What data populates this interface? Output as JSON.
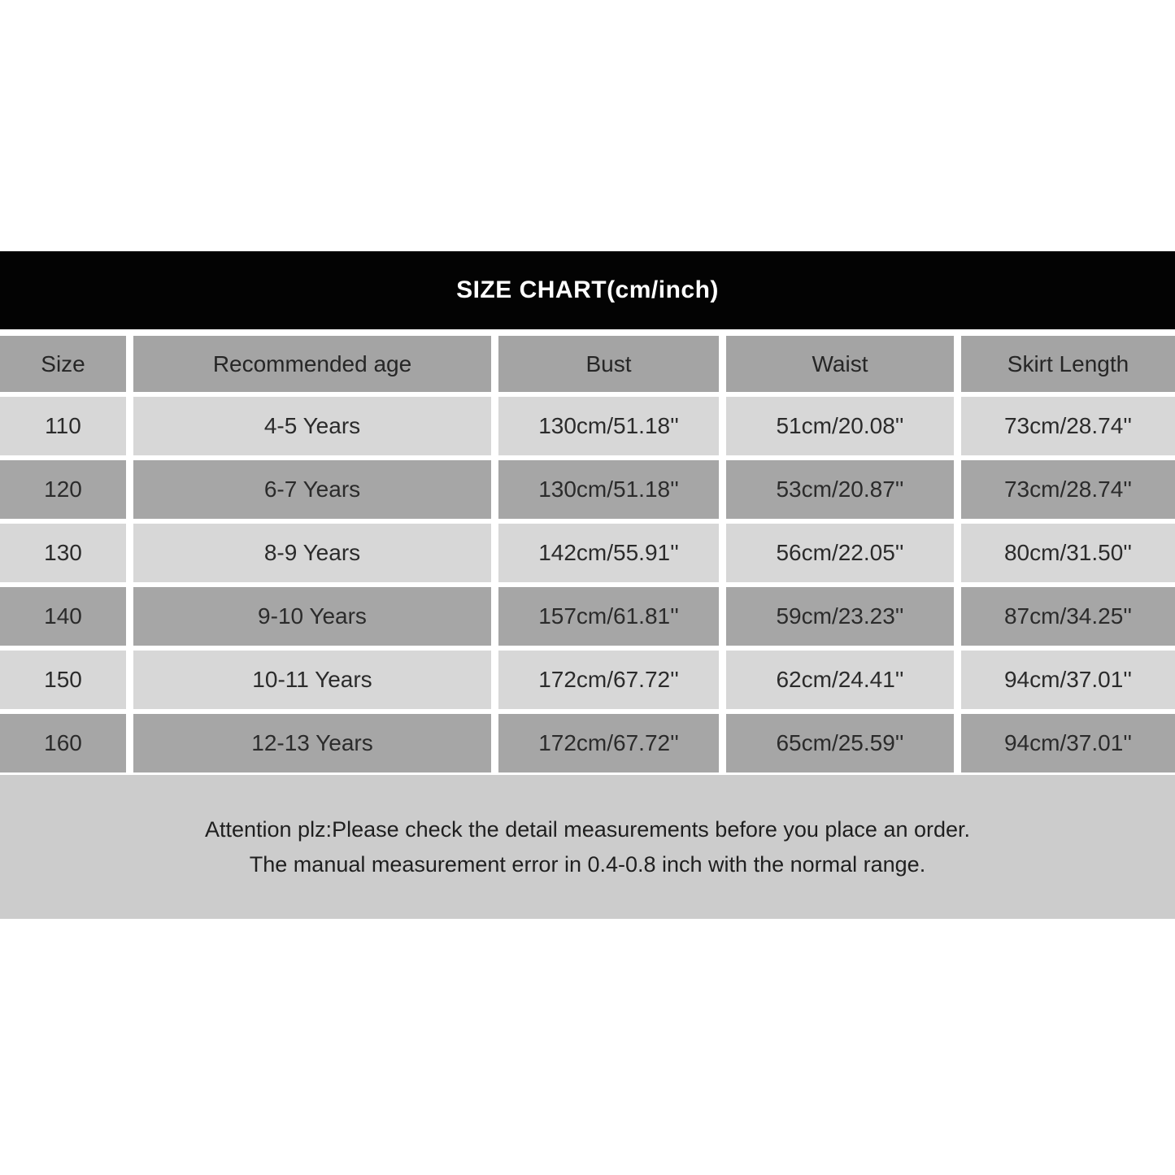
{
  "banner": {
    "title": "SIZE CHART(cm/inch)"
  },
  "chart_data": {
    "type": "table",
    "title": "SIZE CHART(cm/inch)",
    "units": "cm/inch",
    "columns": [
      "Size",
      "Recommended age",
      "Bust",
      "Waist",
      "Skirt Length"
    ],
    "rows": [
      [
        "110",
        "4-5 Years",
        "130cm/51.18''",
        "51cm/20.08''",
        "73cm/28.74''"
      ],
      [
        "120",
        "6-7 Years",
        "130cm/51.18''",
        "53cm/20.87''",
        "73cm/28.74''"
      ],
      [
        "130",
        "8-9 Years",
        "142cm/55.91''",
        "56cm/22.05''",
        "80cm/31.50''"
      ],
      [
        "140",
        "9-10 Years",
        "157cm/61.81''",
        "59cm/23.23''",
        "87cm/34.25''"
      ],
      [
        "150",
        "10-11 Years",
        "172cm/67.72''",
        "62cm/24.41''",
        "94cm/37.01''"
      ],
      [
        "160",
        "12-13 Years",
        "172cm/67.72''",
        "65cm/25.59''",
        "94cm/37.01''"
      ]
    ],
    "note": [
      "Attention plz:Please check the detail measurements before you place an order.",
      "The manual measurement error in 0.4-0.8 inch with the normal range."
    ]
  },
  "colors": {
    "banner_bg": "#030303",
    "banner_text": "#ffffff",
    "header_row_bg": "#a4a4a4",
    "row_light_bg": "#d7d7d7",
    "row_dark_bg": "#a6a6a6",
    "note_bg": "#cccccc",
    "cell_text": "#2b2b2b",
    "gap_color": "#ffffff"
  }
}
